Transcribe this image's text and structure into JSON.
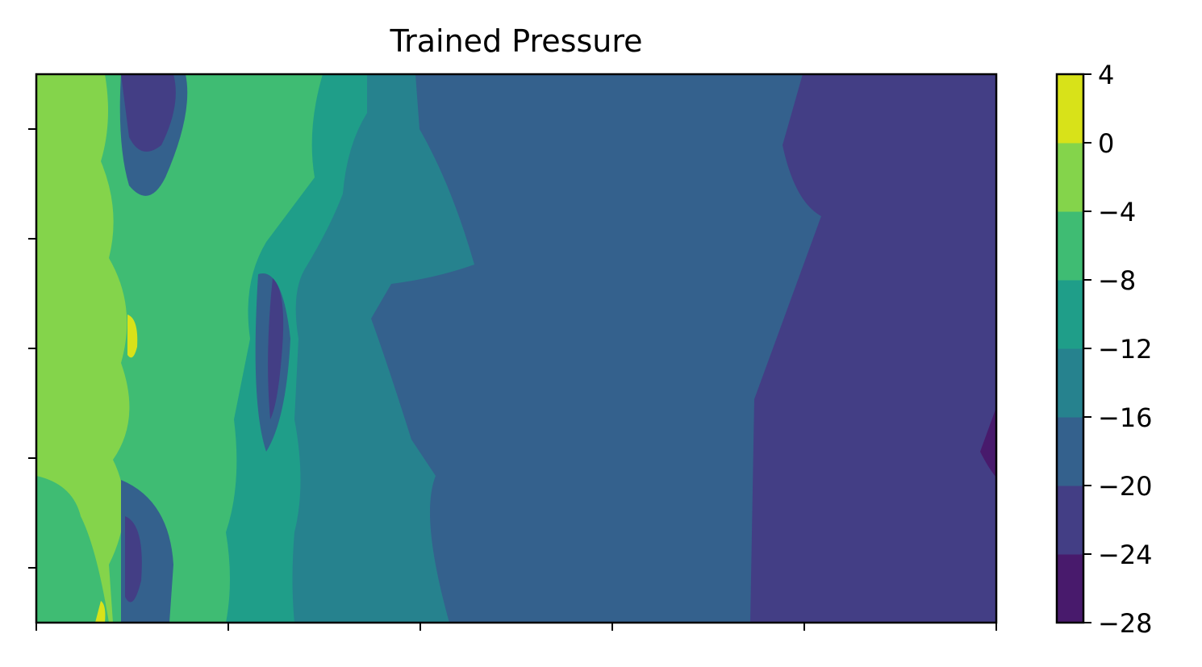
{
  "chart_data": {
    "type": "contour",
    "title": "Trained Pressure",
    "xlabel": "",
    "ylabel": "",
    "x_tick_count": 6,
    "y_tick_count": 5,
    "tick_labels_visible": false,
    "colorbar": {
      "levels": [
        -28,
        -24,
        -20,
        -16,
        -12,
        -8,
        -4,
        0,
        4
      ],
      "tick_labels": [
        "−28",
        "−24",
        "−20",
        "−16",
        "−12",
        "−8",
        "−4",
        "0",
        "4"
      ],
      "colors": [
        "#481a6c",
        "#433e85",
        "#34618d",
        "#26828e",
        "#1f9e89",
        "#3fbc73",
        "#84d44b",
        "#d8e219"
      ],
      "colormap": "viridis"
    },
    "bands": [
      {
        "range": [
          -24,
          -20
        ],
        "color": "#433e85",
        "region": "right"
      },
      {
        "range": [
          -20,
          -16
        ],
        "color": "#34618d",
        "region": "center"
      },
      {
        "range": [
          -16,
          -12
        ],
        "color": "#26828e",
        "region": "left-center"
      },
      {
        "range": [
          -12,
          -8
        ],
        "color": "#1f9e89",
        "region": "left"
      },
      {
        "range": [
          -8,
          -4
        ],
        "color": "#3fbc73",
        "region": "left"
      },
      {
        "range": [
          -4,
          0
        ],
        "color": "#84d44b",
        "region": "left edge"
      },
      {
        "range": [
          0,
          4
        ],
        "color": "#d8e219",
        "region": "left spots"
      },
      {
        "range": [
          -28,
          -24
        ],
        "color": "#481a6c",
        "region": "right edge spot"
      }
    ],
    "grid": false,
    "legend": "none"
  }
}
